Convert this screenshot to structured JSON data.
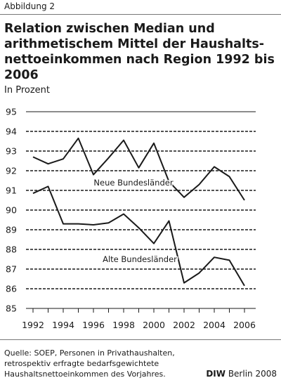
{
  "figure_label": "Abbildung 2",
  "title": "Relation zwischen Median und arithmetischem Mittel der Haushalts-nettoeinkommen nach Region 1992 bis 2006",
  "subtitle": "In Prozent",
  "source_lines": [
    "Quelle: SOEP, Personen in Privathaushalten,",
    "retrospektiv erfragte bedarfsgewichtete",
    "Haushaltsnettoeinkommen des Vorjahres."
  ],
  "credit_brand": "DIW",
  "credit_text": "Berlin 2008",
  "chart_data": {
    "type": "line",
    "title": "Relation zwischen Median und arithmetischem Mittel der Haushalts-nettoeinkommen nach Region 1992 bis 2006",
    "ylabel": "In Prozent",
    "xlabel": "",
    "x": [
      1992,
      1993,
      1994,
      1995,
      1996,
      1997,
      1998,
      1999,
      2000,
      2001,
      2002,
      2003,
      2004,
      2005,
      2006
    ],
    "x_ticks": [
      "1992",
      "1994",
      "1996",
      "1998",
      "2000",
      "2002",
      "2004",
      "2006"
    ],
    "y_ticks": [
      "85",
      "86",
      "87",
      "88",
      "89",
      "90",
      "91",
      "92",
      "93",
      "94",
      "95"
    ],
    "ylim": [
      85,
      95
    ],
    "grid": "horizontal dashed",
    "series": [
      {
        "name": "Neue Bundesländer",
        "values": [
          92.7,
          92.35,
          92.6,
          93.65,
          91.8,
          92.65,
          93.55,
          92.15,
          93.4,
          91.45,
          90.65,
          91.3,
          92.2,
          91.7,
          90.5
        ],
        "color": "#1a1a1a"
      },
      {
        "name": "Alte Bundesländer",
        "values": [
          90.85,
          91.2,
          89.3,
          89.3,
          89.25,
          89.35,
          89.8,
          89.1,
          88.3,
          89.45,
          86.3,
          86.8,
          87.6,
          87.45,
          86.15
        ],
        "color": "#1a1a1a"
      }
    ]
  }
}
